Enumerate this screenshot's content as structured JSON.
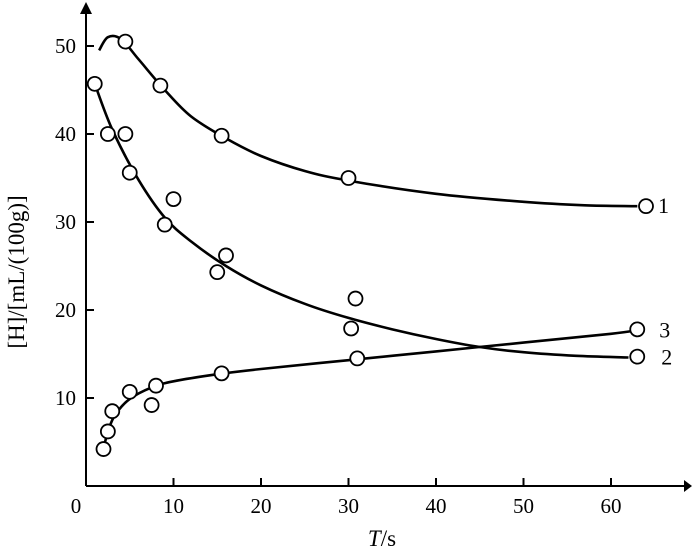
{
  "chart_data": {
    "type": "scatter",
    "title": "",
    "xlabel_italic": "T",
    "xlabel_unit": "/s",
    "ylabel": "[H]/[mL/(100g)]",
    "xlim": [
      0,
      70
    ],
    "ylim": [
      0,
      55
    ],
    "x_ticks": [
      0,
      10,
      20,
      30,
      40,
      50,
      60
    ],
    "y_ticks": [
      10,
      20,
      30,
      40,
      50
    ],
    "grid": false,
    "series": [
      {
        "name": "1",
        "points": [
          [
            4.5,
            50.5
          ],
          [
            8.5,
            45.5
          ],
          [
            15.5,
            39.8
          ],
          [
            30,
            35
          ],
          [
            64,
            31.8
          ]
        ],
        "curve": [
          [
            1.5,
            49.5
          ],
          [
            2.5,
            51
          ],
          [
            4,
            50.8
          ],
          [
            6,
            48.5
          ],
          [
            9,
            45
          ],
          [
            12,
            42
          ],
          [
            16,
            39.5
          ],
          [
            20,
            37.5
          ],
          [
            25,
            35.8
          ],
          [
            30,
            34.7
          ],
          [
            40,
            33.2
          ],
          [
            50,
            32.3
          ],
          [
            57,
            31.9
          ],
          [
            63,
            31.8
          ]
        ]
      },
      {
        "name": "2",
        "points": [
          [
            1,
            45.7
          ],
          [
            2.5,
            40
          ],
          [
            4.5,
            40
          ],
          [
            5,
            35.6
          ],
          [
            9,
            29.7
          ],
          [
            10,
            32.6
          ],
          [
            15,
            24.3
          ],
          [
            16,
            26.2
          ],
          [
            30.3,
            17.9
          ],
          [
            30.8,
            21.3
          ],
          [
            63,
            14.7
          ]
        ],
        "curve": [
          [
            1,
            45.7
          ],
          [
            3,
            40.5
          ],
          [
            6,
            34.8
          ],
          [
            9,
            30.5
          ],
          [
            12,
            27.8
          ],
          [
            16,
            25
          ],
          [
            20,
            22.8
          ],
          [
            25,
            20.7
          ],
          [
            30,
            19.1
          ],
          [
            35,
            17.8
          ],
          [
            40,
            16.7
          ],
          [
            45,
            15.8
          ],
          [
            50,
            15.2
          ],
          [
            56,
            14.8
          ],
          [
            62,
            14.6
          ]
        ]
      },
      {
        "name": "3",
        "points": [
          [
            2,
            4.2
          ],
          [
            2.5,
            6.2
          ],
          [
            3,
            8.5
          ],
          [
            5,
            10.7
          ],
          [
            8,
            11.4
          ],
          [
            7.5,
            9.2
          ],
          [
            15.5,
            12.8
          ],
          [
            31,
            14.5
          ],
          [
            63,
            17.8
          ]
        ],
        "curve": [
          [
            2,
            4.3
          ],
          [
            2.6,
            6.5
          ],
          [
            3.4,
            8.2
          ],
          [
            5,
            9.9
          ],
          [
            7.5,
            11.2
          ],
          [
            10,
            11.9
          ],
          [
            15,
            12.7
          ],
          [
            20,
            13.3
          ],
          [
            30,
            14.3
          ],
          [
            40,
            15.3
          ],
          [
            50,
            16.3
          ],
          [
            60,
            17.3
          ],
          [
            63,
            17.7
          ]
        ]
      }
    ]
  }
}
